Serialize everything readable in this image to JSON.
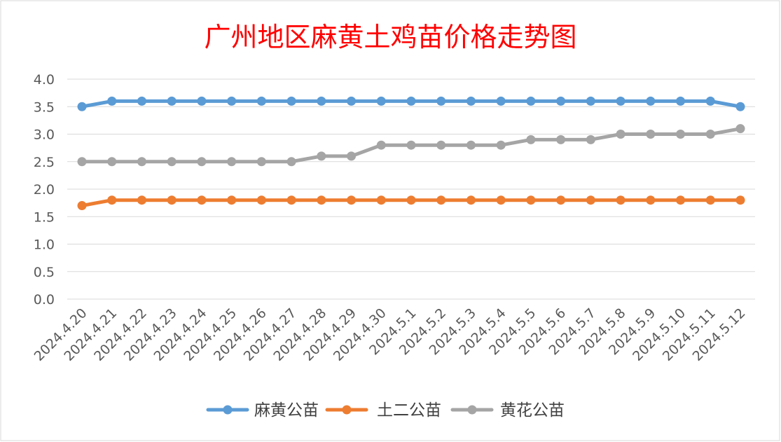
{
  "chart_data": {
    "type": "line",
    "title": "广州地区麻黄土鸡苗价格走势图",
    "xlabel": "",
    "ylabel": "",
    "ylim": [
      0,
      4
    ],
    "y_ticks": [
      "0.0",
      "0.5",
      "1.0",
      "1.5",
      "2.0",
      "2.5",
      "3.0",
      "3.5",
      "4.0"
    ],
    "grid": true,
    "legend_position": "bottom",
    "categories": [
      "2024.4.20",
      "2024.4.21",
      "2024.4.22",
      "2024.4.23",
      "2024.4.24",
      "2024.4.25",
      "2024.4.26",
      "2024.4.27",
      "2024.4.28",
      "2024.4.29",
      "2024.4.30",
      "2024.5.1",
      "2024.5.2",
      "2024.5.3",
      "2024.5.4",
      "2024.5.5",
      "2024.5.6",
      "2024.5.7",
      "2024.5.8",
      "2024.5.9",
      "2024.5.10",
      "2024.5.11",
      "2024.5.12"
    ],
    "series": [
      {
        "name": "麻黄公苗",
        "color": "#5b9bd5",
        "values": [
          3.5,
          3.6,
          3.6,
          3.6,
          3.6,
          3.6,
          3.6,
          3.6,
          3.6,
          3.6,
          3.6,
          3.6,
          3.6,
          3.6,
          3.6,
          3.6,
          3.6,
          3.6,
          3.6,
          3.6,
          3.6,
          3.6,
          3.5
        ]
      },
      {
        "name": "土二公苗",
        "color": "#ed7d31",
        "values": [
          1.7,
          1.8,
          1.8,
          1.8,
          1.8,
          1.8,
          1.8,
          1.8,
          1.8,
          1.8,
          1.8,
          1.8,
          1.8,
          1.8,
          1.8,
          1.8,
          1.8,
          1.8,
          1.8,
          1.8,
          1.8,
          1.8,
          1.8
        ]
      },
      {
        "name": "黄花公苗",
        "color": "#a5a5a5",
        "values": [
          2.5,
          2.5,
          2.5,
          2.5,
          2.5,
          2.5,
          2.5,
          2.5,
          2.6,
          2.6,
          2.8,
          2.8,
          2.8,
          2.8,
          2.8,
          2.9,
          2.9,
          2.9,
          3.0,
          3.0,
          3.0,
          3.0,
          3.1
        ]
      }
    ]
  }
}
